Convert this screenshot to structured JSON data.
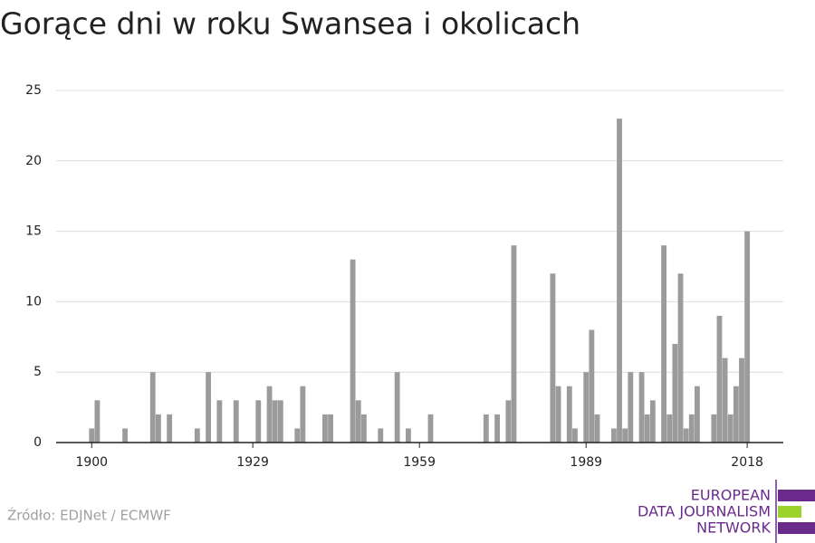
{
  "chart_data": {
    "type": "bar",
    "title": "Gorące dni w roku Swansea i okolicach",
    "source": "Źródło: EDJNet / ECMWF",
    "logo": [
      "EUROPEAN",
      "DATA JOURNALISM",
      "NETWORK"
    ],
    "color": "#9b9b9b",
    "x": [
      1900,
      1901,
      1906,
      1911,
      1912,
      1914,
      1919,
      1921,
      1923,
      1926,
      1930,
      1932,
      1933,
      1934,
      1937,
      1938,
      1942,
      1943,
      1947,
      1948,
      1949,
      1952,
      1955,
      1957,
      1961,
      1971,
      1973,
      1975,
      1976,
      1983,
      1984,
      1986,
      1987,
      1989,
      1990,
      1991,
      1994,
      1995,
      1996,
      1997,
      1999,
      2000,
      2001,
      2003,
      2004,
      2005,
      2006,
      2007,
      2008,
      2009,
      2012,
      2013,
      2014,
      2015,
      2016,
      2017,
      2018
    ],
    "values": [
      1,
      3,
      1,
      5,
      2,
      2,
      1,
      5,
      3,
      3,
      3,
      4,
      3,
      3,
      1,
      4,
      2,
      2,
      13,
      3,
      2,
      1,
      5,
      1,
      2,
      2,
      2,
      3,
      14,
      12,
      4,
      4,
      1,
      5,
      8,
      2,
      1,
      23,
      1,
      5,
      5,
      2,
      3,
      14,
      2,
      7,
      12,
      1,
      2,
      4,
      2,
      9,
      6,
      2,
      4,
      6,
      15
    ],
    "xlim": [
      1893.6,
      2024.5
    ],
    "xticks": [
      1900,
      1929,
      1959,
      1989,
      2018
    ],
    "ylim": [
      0,
      25
    ],
    "yticks": [
      0,
      5,
      10,
      15,
      20,
      25
    ],
    "grid": true
  }
}
